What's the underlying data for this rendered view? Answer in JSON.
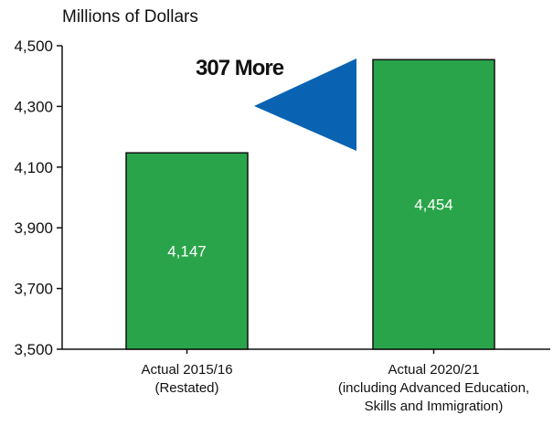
{
  "chart_data": {
    "type": "bar",
    "ylabel": "Millions of Dollars",
    "categories": [
      [
        "Actual 2015/16",
        "(Restated)"
      ],
      [
        "Actual 2020/21",
        "(including Advanced Education,",
        "Skills and Immigration)"
      ]
    ],
    "values": [
      4147,
      4454
    ],
    "value_labels": [
      "4,147",
      "4,454"
    ],
    "ylim": [
      3500,
      4500
    ],
    "yticks": [
      3500,
      3700,
      3900,
      4100,
      4300,
      4500
    ],
    "ytick_labels": [
      "3,500",
      "3,700",
      "3,900",
      "4,100",
      "4,300",
      "4,500"
    ],
    "annotation": {
      "number": "307",
      "word": "More"
    },
    "colors": {
      "bar": "#2aa44a",
      "bar_border": "#111111",
      "arrow": "#0a63b2"
    },
    "grid": false
  }
}
